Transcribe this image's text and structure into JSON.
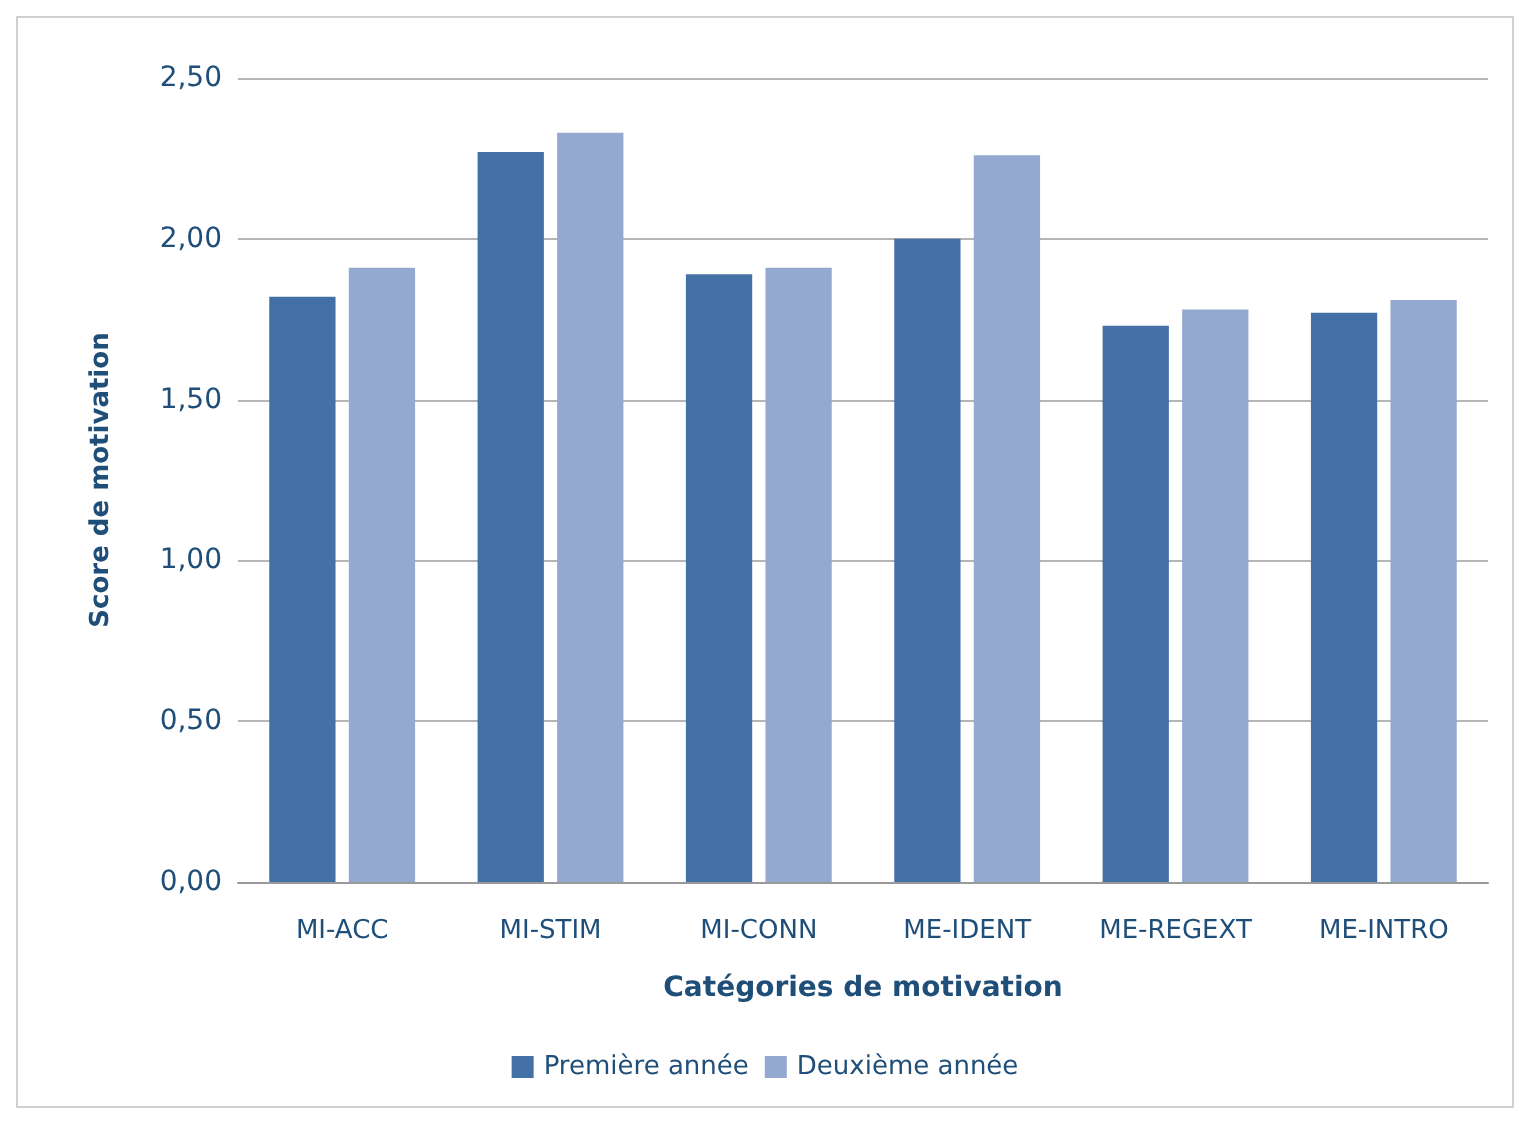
{
  "chart_data": {
    "type": "bar",
    "xlabel": "Catégories de motivation",
    "ylabel": "Score de motivation",
    "categories": [
      "MI-ACC",
      "MI-STIM",
      "MI-CONN",
      "ME-IDENT",
      "ME-REGEXT",
      "ME-INTRO"
    ],
    "series": [
      {
        "name": "Première année",
        "color": "#4470a8",
        "values": [
          1.82,
          2.27,
          1.89,
          2.0,
          1.73,
          1.77
        ]
      },
      {
        "name": "Deuxième année",
        "color": "#93a9cf",
        "values": [
          1.91,
          2.33,
          1.91,
          2.26,
          1.78,
          1.81
        ]
      }
    ],
    "ylim": [
      0,
      2.5
    ],
    "yticks": [
      {
        "value": 0,
        "label": "0,00"
      },
      {
        "value": 0.5,
        "label": "0,50"
      },
      {
        "value": 1,
        "label": "1,00"
      },
      {
        "value": 1.5,
        "label": "1,50"
      },
      {
        "value": 2,
        "label": "2,00"
      },
      {
        "value": 2.5,
        "label": "2,50"
      }
    ],
    "grid": "y",
    "legend": "bottom"
  }
}
